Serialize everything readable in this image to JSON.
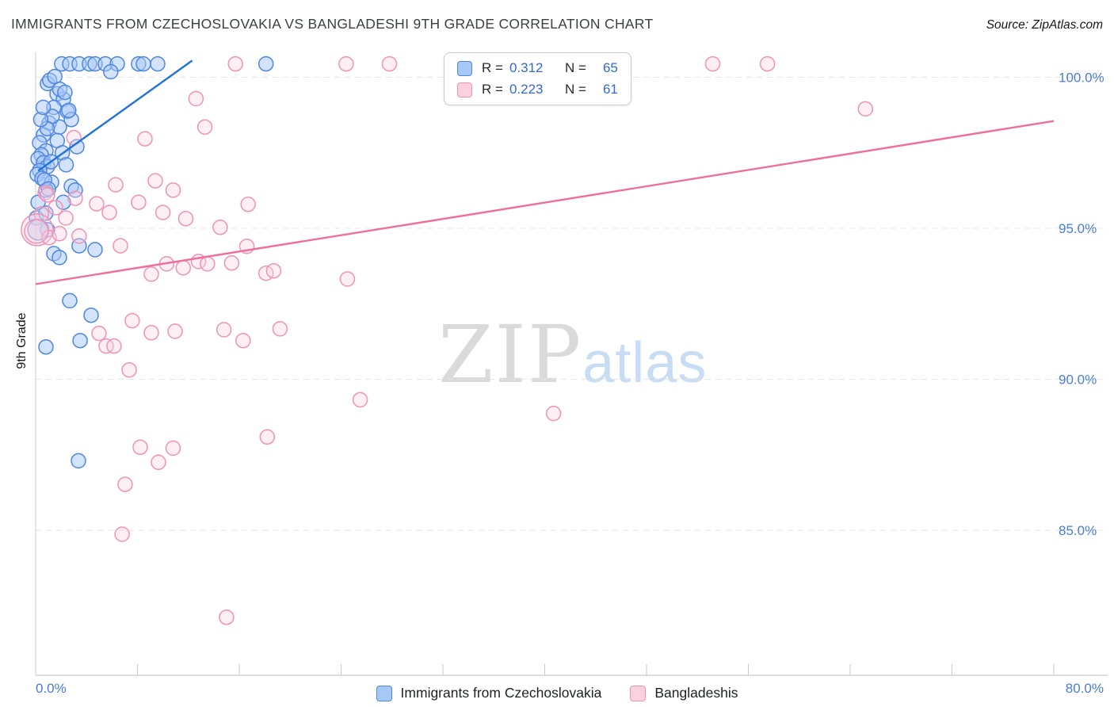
{
  "header": {
    "title": "IMMIGRANTS FROM CZECHOSLOVAKIA VS BANGLADESHI 9TH GRADE CORRELATION CHART",
    "source": "Source: ZipAtlas.com"
  },
  "watermark": {
    "zip": "ZIP",
    "atlas": "atlas"
  },
  "legend_box": {
    "r_label": "R =",
    "n_label": "N ="
  },
  "chart_data": {
    "type": "scatter",
    "title": "IMMIGRANTS FROM CZECHOSLOVAKIA VS BANGLADESHI 9TH GRADE CORRELATION CHART",
    "xlabel": "",
    "ylabel": "9th Grade",
    "x_range": [
      0,
      80
    ],
    "y_range": [
      80.2,
      100.85
    ],
    "grid": true,
    "legend_position": "bottom",
    "x_axis_labels": [
      "0.0%",
      "80.0%"
    ],
    "y_ticks": [
      {
        "value": 100.0,
        "label": "100.0%"
      },
      {
        "value": 95.0,
        "label": "95.0%"
      },
      {
        "value": 90.0,
        "label": "90.0%"
      },
      {
        "value": 85.0,
        "label": "85.0%"
      }
    ],
    "colors": {
      "tick_label": "#4a7dd2",
      "grid": "#e4e4e4",
      "axis": "#bdbdbd"
    },
    "series": [
      {
        "name": "Immigrants from Czechoslovakia",
        "R": "0.312",
        "N": "65",
        "marker": {
          "fill": "#a6c8f7",
          "fill_opacity": 0.5,
          "stroke": "#4f86e0"
        },
        "trend": {
          "color": "#2173d9",
          "x1": 0.2,
          "y1": 96.9,
          "x2": 12.3,
          "y2": 100.55
        },
        "points": [
          [
            2.05,
            100.44
          ],
          [
            2.68,
            100.44
          ],
          [
            3.42,
            100.44
          ],
          [
            4.23,
            100.44
          ],
          [
            4.67,
            100.44
          ],
          [
            5.48,
            100.44
          ],
          [
            6.41,
            100.44
          ],
          [
            8.09,
            100.44
          ],
          [
            8.47,
            100.44
          ],
          [
            9.59,
            100.44
          ],
          [
            18.1,
            100.44
          ],
          [
            5.9,
            100.18
          ],
          [
            0.93,
            99.79
          ],
          [
            1.68,
            99.45
          ],
          [
            2.18,
            99.27
          ],
          [
            1.43,
            99.0
          ],
          [
            2.49,
            98.87
          ],
          [
            2.8,
            98.6
          ],
          [
            1.06,
            98.48
          ],
          [
            1.87,
            98.35
          ],
          [
            3.24,
            97.7
          ],
          [
            0.62,
            98.09
          ],
          [
            0.31,
            97.83
          ],
          [
            0.81,
            97.56
          ],
          [
            0.44,
            97.43
          ],
          [
            0.19,
            97.3
          ],
          [
            0.62,
            97.17
          ],
          [
            0.93,
            97.04
          ],
          [
            0.31,
            96.91
          ],
          [
            0.12,
            96.78
          ],
          [
            0.5,
            96.65
          ],
          [
            1.25,
            96.52
          ],
          [
            0.81,
            96.26
          ],
          [
            2.8,
            96.39
          ],
          [
            3.11,
            96.26
          ],
          [
            0.19,
            95.86
          ],
          [
            2.18,
            95.86
          ],
          [
            0.06,
            95.34
          ],
          [
            0.93,
            94.95
          ],
          [
            0.19,
            94.95,
            13
          ],
          [
            1.43,
            94.16
          ],
          [
            1.87,
            94.03
          ],
          [
            3.42,
            94.42
          ],
          [
            4.67,
            94.29
          ],
          [
            2.68,
            92.6
          ],
          [
            4.36,
            92.12
          ],
          [
            3.49,
            91.28
          ],
          [
            0.81,
            91.07
          ],
          [
            3.36,
            87.3
          ],
          [
            1.1,
            99.9
          ],
          [
            1.5,
            100.02
          ],
          [
            1.9,
            99.6
          ],
          [
            2.3,
            99.5
          ],
          [
            1.3,
            98.7
          ],
          [
            0.9,
            98.3
          ],
          [
            1.7,
            97.9
          ],
          [
            2.1,
            97.5
          ],
          [
            0.7,
            96.6
          ],
          [
            1.0,
            96.3
          ],
          [
            0.4,
            98.6
          ],
          [
            0.6,
            99.0
          ],
          [
            2.6,
            98.9
          ],
          [
            1.2,
            97.2
          ],
          [
            0.8,
            95.5
          ],
          [
            2.4,
            97.1
          ]
        ]
      },
      {
        "name": "Bangladeshis",
        "R": "0.223",
        "N": "61",
        "marker": {
          "fill": "#fbd0df",
          "fill_opacity": 0.35,
          "stroke": "#f192b4"
        },
        "trend": {
          "color": "#ee6e9d",
          "x1": 0,
          "y1": 93.15,
          "x2": 80,
          "y2": 98.55
        },
        "points": [
          [
            15.7,
            100.44
          ],
          [
            24.4,
            100.44
          ],
          [
            27.8,
            100.44
          ],
          [
            53.2,
            100.44
          ],
          [
            57.5,
            100.44
          ],
          [
            65.2,
            98.95
          ],
          [
            12.6,
            99.29
          ],
          [
            13.3,
            98.35
          ],
          [
            8.59,
            97.96
          ],
          [
            3.0,
            98.0
          ],
          [
            9.4,
            96.57
          ],
          [
            10.8,
            96.26
          ],
          [
            6.29,
            96.44
          ],
          [
            8.09,
            95.86
          ],
          [
            10.0,
            95.52
          ],
          [
            4.79,
            95.81
          ],
          [
            5.79,
            95.52
          ],
          [
            16.7,
            95.79
          ],
          [
            14.5,
            95.03
          ],
          [
            11.8,
            95.32
          ],
          [
            3.11,
            95.99
          ],
          [
            2.37,
            95.34
          ],
          [
            1.56,
            95.68
          ],
          [
            0.75,
            96.18
          ],
          [
            0.44,
            95.47
          ],
          [
            0.12,
            94.95,
            20
          ],
          [
            1.06,
            94.69
          ],
          [
            1.87,
            94.82
          ],
          [
            3.42,
            94.74
          ],
          [
            6.66,
            94.42
          ],
          [
            16.6,
            94.4
          ],
          [
            18.1,
            93.51
          ],
          [
            18.7,
            93.59
          ],
          [
            16.3,
            91.28
          ],
          [
            9.09,
            93.48
          ],
          [
            10.3,
            93.82
          ],
          [
            11.6,
            93.69
          ],
          [
            12.8,
            93.9
          ],
          [
            13.5,
            93.82
          ],
          [
            15.4,
            93.85
          ],
          [
            24.5,
            93.32
          ],
          [
            7.59,
            91.94
          ],
          [
            4.98,
            91.52
          ],
          [
            9.09,
            91.54
          ],
          [
            10.96,
            91.59
          ],
          [
            14.8,
            91.64
          ],
          [
            19.2,
            91.67
          ],
          [
            5.54,
            91.1
          ],
          [
            6.16,
            91.1
          ],
          [
            7.35,
            90.31
          ],
          [
            25.5,
            89.32
          ],
          [
            40.7,
            88.87
          ],
          [
            8.22,
            87.75
          ],
          [
            10.8,
            87.72
          ],
          [
            18.2,
            88.09
          ],
          [
            9.65,
            87.25
          ],
          [
            7.03,
            86.52
          ],
          [
            6.79,
            84.87
          ],
          [
            15.0,
            82.12
          ],
          [
            0.93,
            96.1
          ],
          [
            0.06,
            94.9,
            15
          ]
        ]
      }
    ]
  }
}
